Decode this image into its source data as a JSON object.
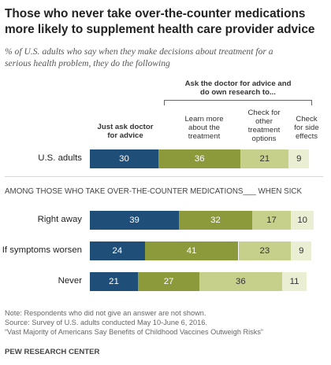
{
  "title": "Those who never take over-the-counter  medications\nmore likely to supplement health care provider advice",
  "subtitle": "% of U.S. adults who say when they make decisions about treatment for a\nserious health problem, they do the following",
  "headers": {
    "group": "Ask the doctor for advice and\ndo own research to...",
    "col1": "Just ask doctor\nfor advice",
    "col2": "Learn more\nabout the\ntreatment",
    "col3": "Check for\nother\ntreatment\noptions",
    "col4": "Check\nfor side\neffects"
  },
  "section_label": "AMONG THOSE WHO TAKE OVER-THE-COUNTER MEDICATIONS___ WHEN SICK",
  "colors": {
    "series1": "#1f4e79",
    "series2": "#8c9a3c",
    "series3": "#c7d08a",
    "series4": "#eaeed3",
    "text_light": "#ffffff",
    "text_dark": "#333333"
  },
  "chart_data": {
    "type": "bar",
    "orientation": "horizontal",
    "stacked": true,
    "categories": [
      "U.S. adults",
      "Right away",
      "If symptoms worsen",
      "Never"
    ],
    "series": [
      {
        "name": "Just ask doctor for advice",
        "values": [
          30,
          39,
          24,
          21
        ]
      },
      {
        "name": "Learn more about the treatment",
        "values": [
          36,
          32,
          41,
          27
        ]
      },
      {
        "name": "Check for other treatment options",
        "values": [
          21,
          17,
          23,
          36
        ]
      },
      {
        "name": "Check for side effects",
        "values": [
          9,
          10,
          9,
          11
        ]
      }
    ]
  },
  "notes": {
    "line1": "Note: Respondents who did not give an answer are not shown.",
    "line2": "Source: Survey of U.S. adults conducted May 10-June 6, 2016.",
    "line3": "“Vast Majority of Americans Say Benefits of Childhood Vaccines Outweigh Risks”",
    "org": "PEW RESEARCH CENTER"
  }
}
